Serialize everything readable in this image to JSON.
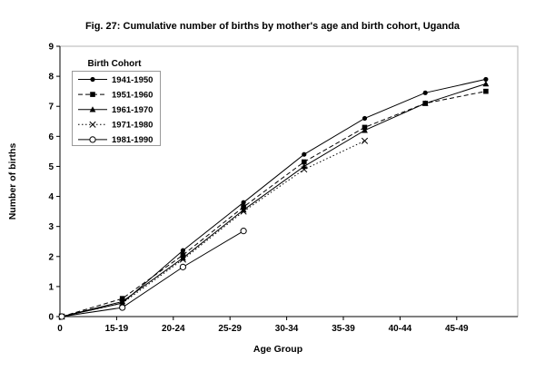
{
  "figure": {
    "title": "Fig. 27:  Cumulative number of births by mother's age and birth cohort, Uganda"
  },
  "chart_data": {
    "type": "line",
    "title": "Fig. 27:  Cumulative number of births by mother's age and birth cohort, Uganda",
    "xlabel": "Age Group",
    "ylabel": "Number of births",
    "ylim": [
      0,
      9
    ],
    "y_ticks": [
      0,
      1,
      2,
      3,
      4,
      5,
      6,
      7,
      8,
      9
    ],
    "categories": [
      "0",
      "15-19",
      "20-24",
      "25-29",
      "30-34",
      "35-39",
      "40-44",
      "45-49"
    ],
    "grid": false,
    "legend_title": "Birth Cohort",
    "legend_position": "top-left-inside",
    "series": [
      {
        "name": "1941-1950",
        "marker": "filled-circle",
        "line": "solid",
        "color": "#000000",
        "values": [
          0,
          0.45,
          2.2,
          3.8,
          5.4,
          6.6,
          7.45,
          7.9
        ]
      },
      {
        "name": "1951-1960",
        "marker": "filled-square",
        "line": "dashed",
        "color": "#000000",
        "values": [
          0,
          0.6,
          2.05,
          3.65,
          5.15,
          6.3,
          7.1,
          7.5
        ]
      },
      {
        "name": "1961-1970",
        "marker": "filled-triangle",
        "line": "solid",
        "color": "#000000",
        "values": [
          0,
          0.5,
          1.95,
          3.55,
          5.0,
          6.2,
          7.1,
          7.75
        ]
      },
      {
        "name": "1971-1980",
        "marker": "x-cross",
        "line": "dotted",
        "color": "#000000",
        "values": [
          0,
          0.45,
          1.9,
          3.5,
          4.9,
          5.85,
          null,
          null
        ]
      },
      {
        "name": "1981-1990",
        "marker": "open-circle",
        "line": "solid",
        "color": "#000000",
        "values": [
          0,
          0.3,
          1.65,
          2.85,
          null,
          null,
          null,
          null
        ]
      }
    ],
    "colors": {
      "background": "#ffffff",
      "plot_border": "#b3b3b3",
      "axis": "#000000",
      "legend_border": "#999999"
    }
  }
}
